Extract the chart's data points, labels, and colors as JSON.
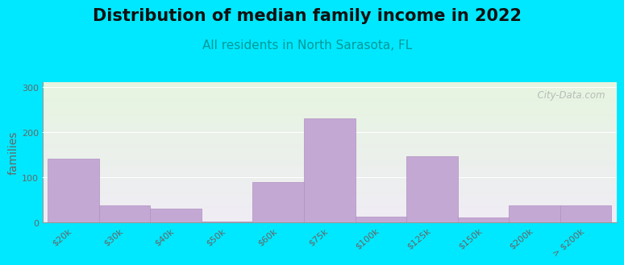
{
  "title": "Distribution of median family income in 2022",
  "subtitle": "All residents in North Sarasota, FL",
  "ylabel": "families",
  "bar_left_edges": [
    0,
    1,
    2,
    3,
    4,
    5,
    6,
    7,
    8,
    9,
    10
  ],
  "bar_widths": [
    1,
    1,
    1,
    1,
    1,
    1,
    1,
    1,
    1,
    1,
    1
  ],
  "values": [
    140,
    37,
    30,
    2,
    90,
    230,
    13,
    147,
    10,
    37,
    37
  ],
  "xtick_positions": [
    0.5,
    1.5,
    2.5,
    3.5,
    4.5,
    5.5,
    6.5,
    7.5,
    8.5,
    9.5,
    10.5
  ],
  "xtick_labels": [
    "$20k",
    "$30k",
    "$40k",
    "$50k",
    "$60k",
    "$75k",
    "$100k",
    "$125k",
    "$150k",
    "$200k",
    "> $200k"
  ],
  "bar_color": "#c4a8d4",
  "bar_edgecolor": "#b090c0",
  "ylim": [
    0,
    310
  ],
  "xlim": [
    -0.1,
    11.1
  ],
  "yticks": [
    0,
    100,
    200,
    300
  ],
  "bg_outer": "#00e8ff",
  "bg_plot_top": "#e6f5e0",
  "bg_plot_bottom": "#f0ecf5",
  "title_fontsize": 15,
  "subtitle_fontsize": 11,
  "ylabel_fontsize": 10,
  "tick_label_fontsize": 8,
  "tick_color": "#666666",
  "subtitle_color": "#009999",
  "title_color": "#111111",
  "watermark": "  City-Data.com"
}
